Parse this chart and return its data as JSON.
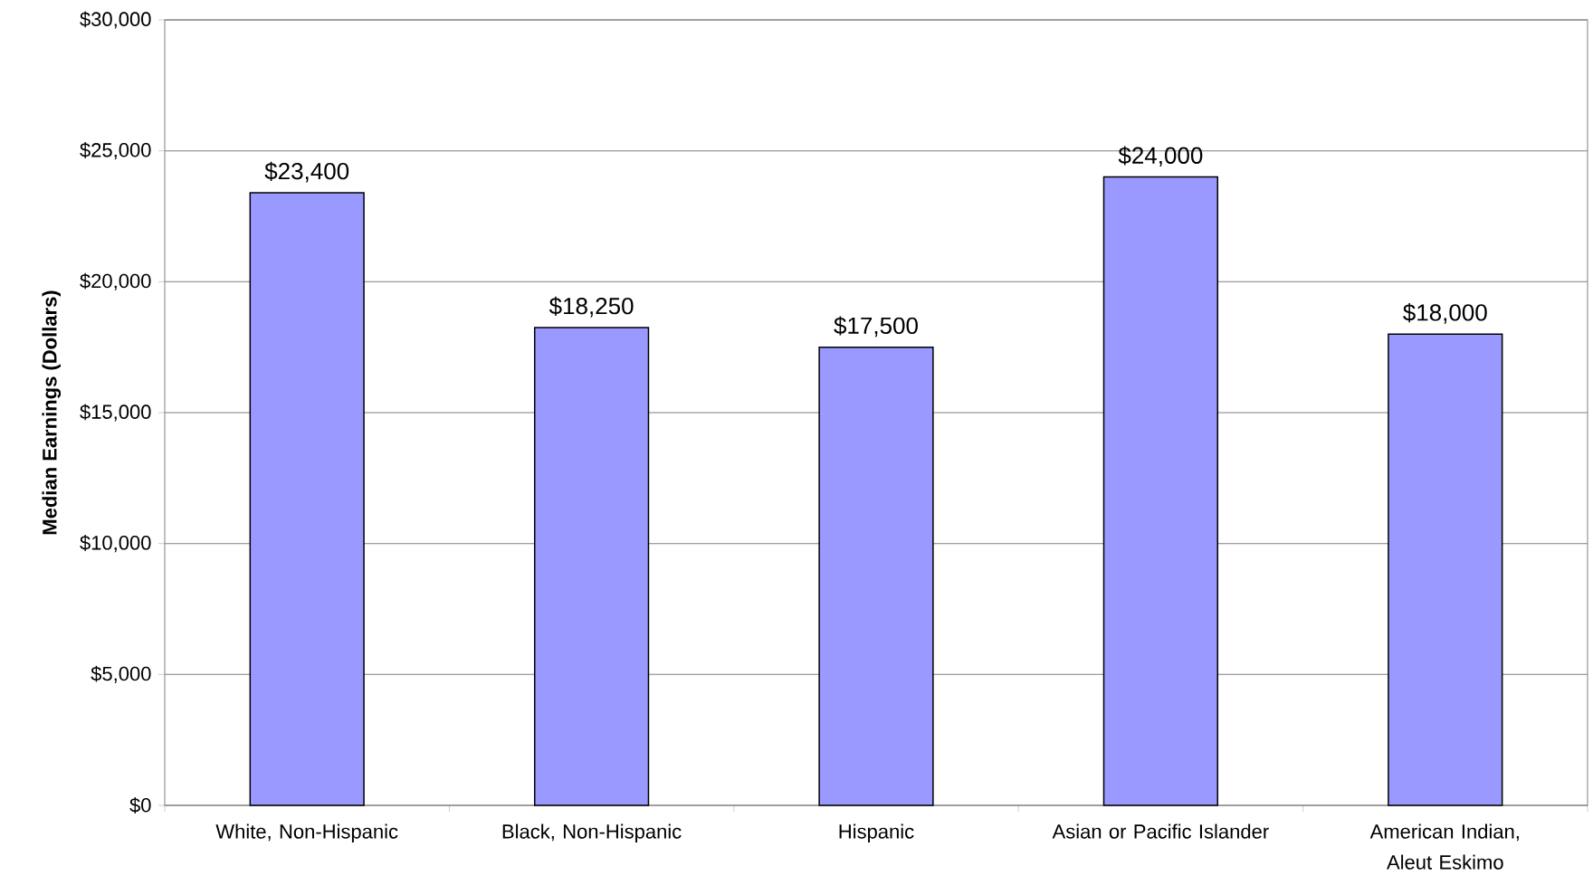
{
  "chart_data": {
    "type": "bar",
    "ylabel": "Median Earnings (Dollars)",
    "categories": [
      "White, Non-Hispanic",
      "Black, Non-Hispanic",
      "Hispanic",
      "Asian or Pacific Islander",
      "American Indian, Aleut Eskimo"
    ],
    "values": [
      23400,
      18250,
      17500,
      24000,
      18000
    ],
    "value_labels": [
      "$23,400",
      "$18,250",
      "$17,500",
      "$24,000",
      "$18,000"
    ],
    "color": "#9999ff",
    "ylim": [
      0,
      30000
    ],
    "yticks": [
      {
        "value": 0,
        "label": "$0"
      },
      {
        "value": 5000,
        "label": "$5,000"
      },
      {
        "value": 10000,
        "label": "$10,000"
      },
      {
        "value": 15000,
        "label": "$15,000"
      },
      {
        "value": 20000,
        "label": "$20,000"
      },
      {
        "value": 25000,
        "label": "$25,000"
      },
      {
        "value": 30000,
        "label": "$30,000"
      }
    ],
    "grid": "y"
  }
}
